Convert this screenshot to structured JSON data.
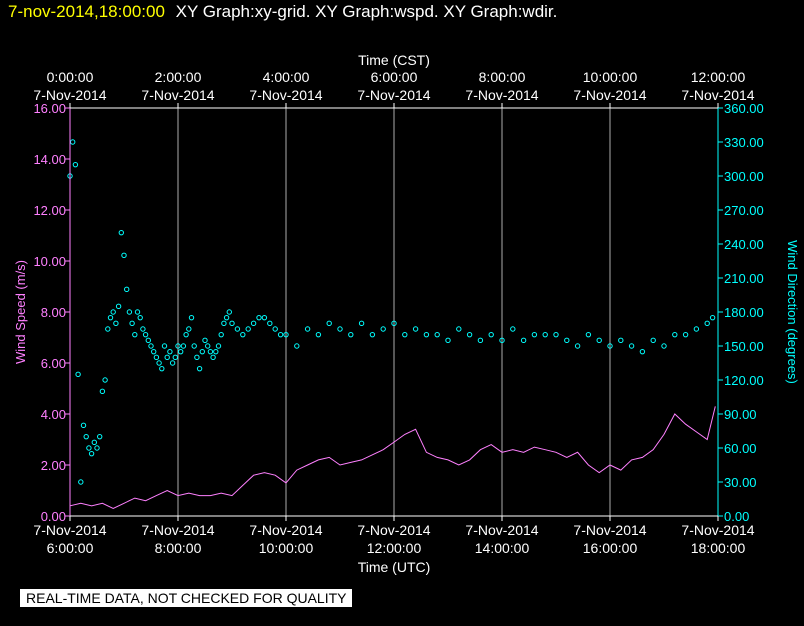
{
  "header": {
    "timestamp": "7-nov-2014,18:00:00",
    "titles": "XY Graph:xy-grid.  XY Graph:wspd.  XY Graph:wdir."
  },
  "disclaimer": "REAL-TIME DATA, NOT CHECKED FOR QUALITY",
  "chart_data": {
    "type": "scatter",
    "top_axis": {
      "label": "Time (CST)",
      "ticks": [
        {
          "hour": 6,
          "time": "0:00:00",
          "date": "7-Nov-2014"
        },
        {
          "hour": 8,
          "time": "2:00:00",
          "date": "7-Nov-2014"
        },
        {
          "hour": 10,
          "time": "4:00:00",
          "date": "7-Nov-2014"
        },
        {
          "hour": 12,
          "time": "6:00:00",
          "date": "7-Nov-2014"
        },
        {
          "hour": 14,
          "time": "8:00:00",
          "date": "7-Nov-2014"
        },
        {
          "hour": 16,
          "time": "10:00:00",
          "date": "7-Nov-2014"
        },
        {
          "hour": 18,
          "time": "12:00:00",
          "date": "7-Nov-2014"
        }
      ]
    },
    "bottom_axis": {
      "label": "Time (UTC)",
      "range": [
        6,
        18
      ],
      "ticks": [
        {
          "hour": 6,
          "date": "7-Nov-2014",
          "time": "6:00:00"
        },
        {
          "hour": 8,
          "date": "7-Nov-2014",
          "time": "8:00:00"
        },
        {
          "hour": 10,
          "date": "7-Nov-2014",
          "time": "10:00:00"
        },
        {
          "hour": 12,
          "date": "7-Nov-2014",
          "time": "12:00:00"
        },
        {
          "hour": 14,
          "date": "7-Nov-2014",
          "time": "14:00:00"
        },
        {
          "hour": 16,
          "date": "7-Nov-2014",
          "time": "16:00:00"
        },
        {
          "hour": 18,
          "date": "7-Nov-2014",
          "time": "18:00:00"
        }
      ]
    },
    "left_axis": {
      "label": "Wind Speed (m/s)",
      "range": [
        0,
        16
      ],
      "tick_labels": [
        "0.00",
        "2.00",
        "4.00",
        "6.00",
        "8.00",
        "10.00",
        "12.00",
        "14.00",
        "16.00"
      ],
      "color": "#ff80ff"
    },
    "right_axis": {
      "label": "Wind Direction (degrees)",
      "range": [
        0,
        360
      ],
      "tick_labels": [
        "0.00",
        "30.00",
        "60.00",
        "90.00",
        "120.00",
        "150.00",
        "180.00",
        "210.00",
        "240.00",
        "270.00",
        "300.00",
        "330.00",
        "360.00"
      ],
      "color": "#00ffff"
    },
    "grid": "vertical",
    "colors": {
      "speed": "#ff80ff",
      "direction": "#00ffff",
      "grid": "#ffffff",
      "frame": "#ff80ff"
    },
    "series": [
      {
        "kind": "line",
        "axis": "left",
        "x": [
          6.0,
          6.2,
          6.4,
          6.6,
          6.8,
          7.0,
          7.2,
          7.4,
          7.6,
          7.8,
          8.0,
          8.2,
          8.4,
          8.6,
          8.8,
          9.0,
          9.2,
          9.4,
          9.6,
          9.8,
          10.0,
          10.2,
          10.4,
          10.6,
          10.8,
          11.0,
          11.2,
          11.4,
          11.6,
          11.8,
          12.0,
          12.2,
          12.4,
          12.6,
          12.8,
          13.0,
          13.2,
          13.4,
          13.6,
          13.8,
          14.0,
          14.2,
          14.4,
          14.6,
          14.8,
          15.0,
          15.2,
          15.4,
          15.6,
          15.8,
          16.0,
          16.2,
          16.4,
          16.6,
          16.8,
          17.0,
          17.2,
          17.4,
          17.6,
          17.8,
          17.95
        ],
        "y": [
          0.4,
          0.5,
          0.4,
          0.5,
          0.3,
          0.5,
          0.7,
          0.6,
          0.8,
          1.0,
          0.8,
          0.9,
          0.8,
          0.8,
          0.9,
          0.8,
          1.2,
          1.6,
          1.7,
          1.6,
          1.3,
          1.8,
          2.0,
          2.2,
          2.3,
          2.0,
          2.1,
          2.2,
          2.4,
          2.6,
          2.9,
          3.2,
          3.4,
          2.5,
          2.3,
          2.2,
          2.0,
          2.2,
          2.6,
          2.8,
          2.5,
          2.6,
          2.5,
          2.7,
          2.6,
          2.5,
          2.3,
          2.5,
          2.0,
          1.7,
          2.0,
          1.8,
          2.2,
          2.3,
          2.6,
          3.2,
          4.0,
          3.6,
          3.3,
          3.0,
          4.3
        ]
      },
      {
        "kind": "scatter",
        "axis": "right",
        "x": [
          6.0,
          6.05,
          6.1,
          6.15,
          6.2,
          6.25,
          6.3,
          6.35,
          6.4,
          6.45,
          6.5,
          6.55,
          6.6,
          6.65,
          6.7,
          6.75,
          6.8,
          6.85,
          6.9,
          6.95,
          7.0,
          7.05,
          7.1,
          7.15,
          7.2,
          7.25,
          7.3,
          7.35,
          7.4,
          7.45,
          7.5,
          7.55,
          7.6,
          7.65,
          7.7,
          7.75,
          7.8,
          7.85,
          7.9,
          7.95,
          8.0,
          8.05,
          8.1,
          8.15,
          8.2,
          8.25,
          8.3,
          8.35,
          8.4,
          8.45,
          8.5,
          8.55,
          8.6,
          8.65,
          8.7,
          8.75,
          8.8,
          8.85,
          8.9,
          8.95,
          9.0,
          9.1,
          9.2,
          9.3,
          9.4,
          9.5,
          9.6,
          9.7,
          9.8,
          9.9,
          10.0,
          10.2,
          10.4,
          10.6,
          10.8,
          11.0,
          11.2,
          11.4,
          11.6,
          11.8,
          12.0,
          12.2,
          12.4,
          12.6,
          12.8,
          13.0,
          13.2,
          13.4,
          13.6,
          13.8,
          14.0,
          14.2,
          14.4,
          14.6,
          14.8,
          15.0,
          15.2,
          15.4,
          15.6,
          15.8,
          16.0,
          16.2,
          16.4,
          16.6,
          16.8,
          17.0,
          17.2,
          17.4,
          17.6,
          17.8,
          17.9
        ],
        "y": [
          300,
          330,
          310,
          125,
          30,
          80,
          70,
          60,
          55,
          65,
          60,
          70,
          110,
          120,
          165,
          175,
          180,
          170,
          185,
          250,
          230,
          200,
          180,
          170,
          160,
          180,
          175,
          165,
          160,
          155,
          150,
          145,
          140,
          135,
          130,
          150,
          140,
          145,
          135,
          140,
          150,
          145,
          150,
          160,
          165,
          175,
          150,
          140,
          130,
          145,
          155,
          150,
          145,
          140,
          145,
          150,
          160,
          170,
          175,
          180,
          170,
          165,
          160,
          165,
          170,
          175,
          175,
          170,
          165,
          160,
          160,
          150,
          165,
          160,
          170,
          165,
          160,
          170,
          160,
          165,
          170,
          160,
          165,
          160,
          160,
          155,
          165,
          160,
          155,
          160,
          155,
          165,
          155,
          160,
          160,
          160,
          155,
          150,
          160,
          155,
          150,
          155,
          150,
          145,
          155,
          150,
          160,
          160,
          165,
          170,
          175
        ]
      }
    ]
  }
}
